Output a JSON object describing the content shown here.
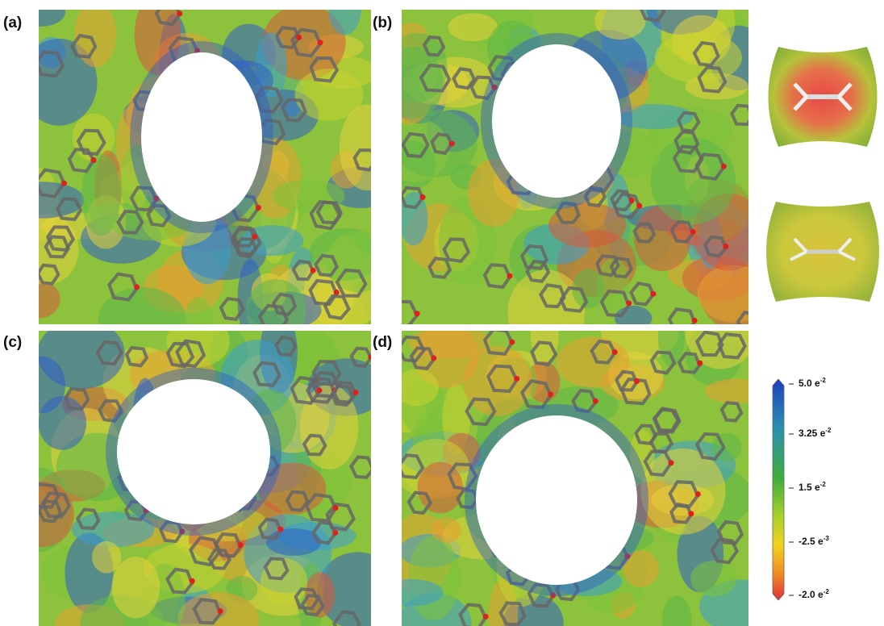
{
  "panels": [
    {
      "label": "(a)"
    },
    {
      "label": "(b)"
    },
    {
      "label": "(c)"
    },
    {
      "label": "(d)"
    }
  ],
  "colorbar": {
    "ticks": [
      {
        "base": "5.0 e",
        "exp": "-2"
      },
      {
        "base": "3.25 e",
        "exp": "-2"
      },
      {
        "base": "1.5 e",
        "exp": "-2"
      },
      {
        "base": "-2.5 e",
        "exp": "-3"
      },
      {
        "base": "-2.0 e",
        "exp": "-2"
      }
    ]
  }
}
